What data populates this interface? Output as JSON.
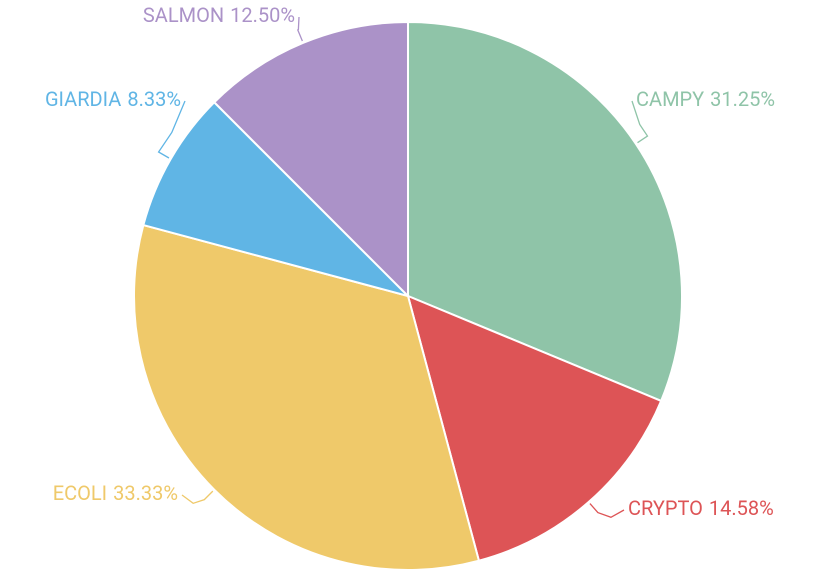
{
  "chart_data": {
    "type": "pie",
    "categories": [
      "CAMPY",
      "CRYPTO",
      "ECOLI",
      "GIARDIA",
      "SALMON"
    ],
    "values": [
      31.25,
      14.58,
      33.33,
      8.33,
      12.5
    ],
    "value_labels": [
      "31.25%",
      "14.58%",
      "33.33%",
      "8.33%",
      "12.50%"
    ],
    "colors": [
      "#8fc4a8",
      "#dd5456",
      "#efc96a",
      "#60b5e5",
      "#ab92c8"
    ]
  }
}
